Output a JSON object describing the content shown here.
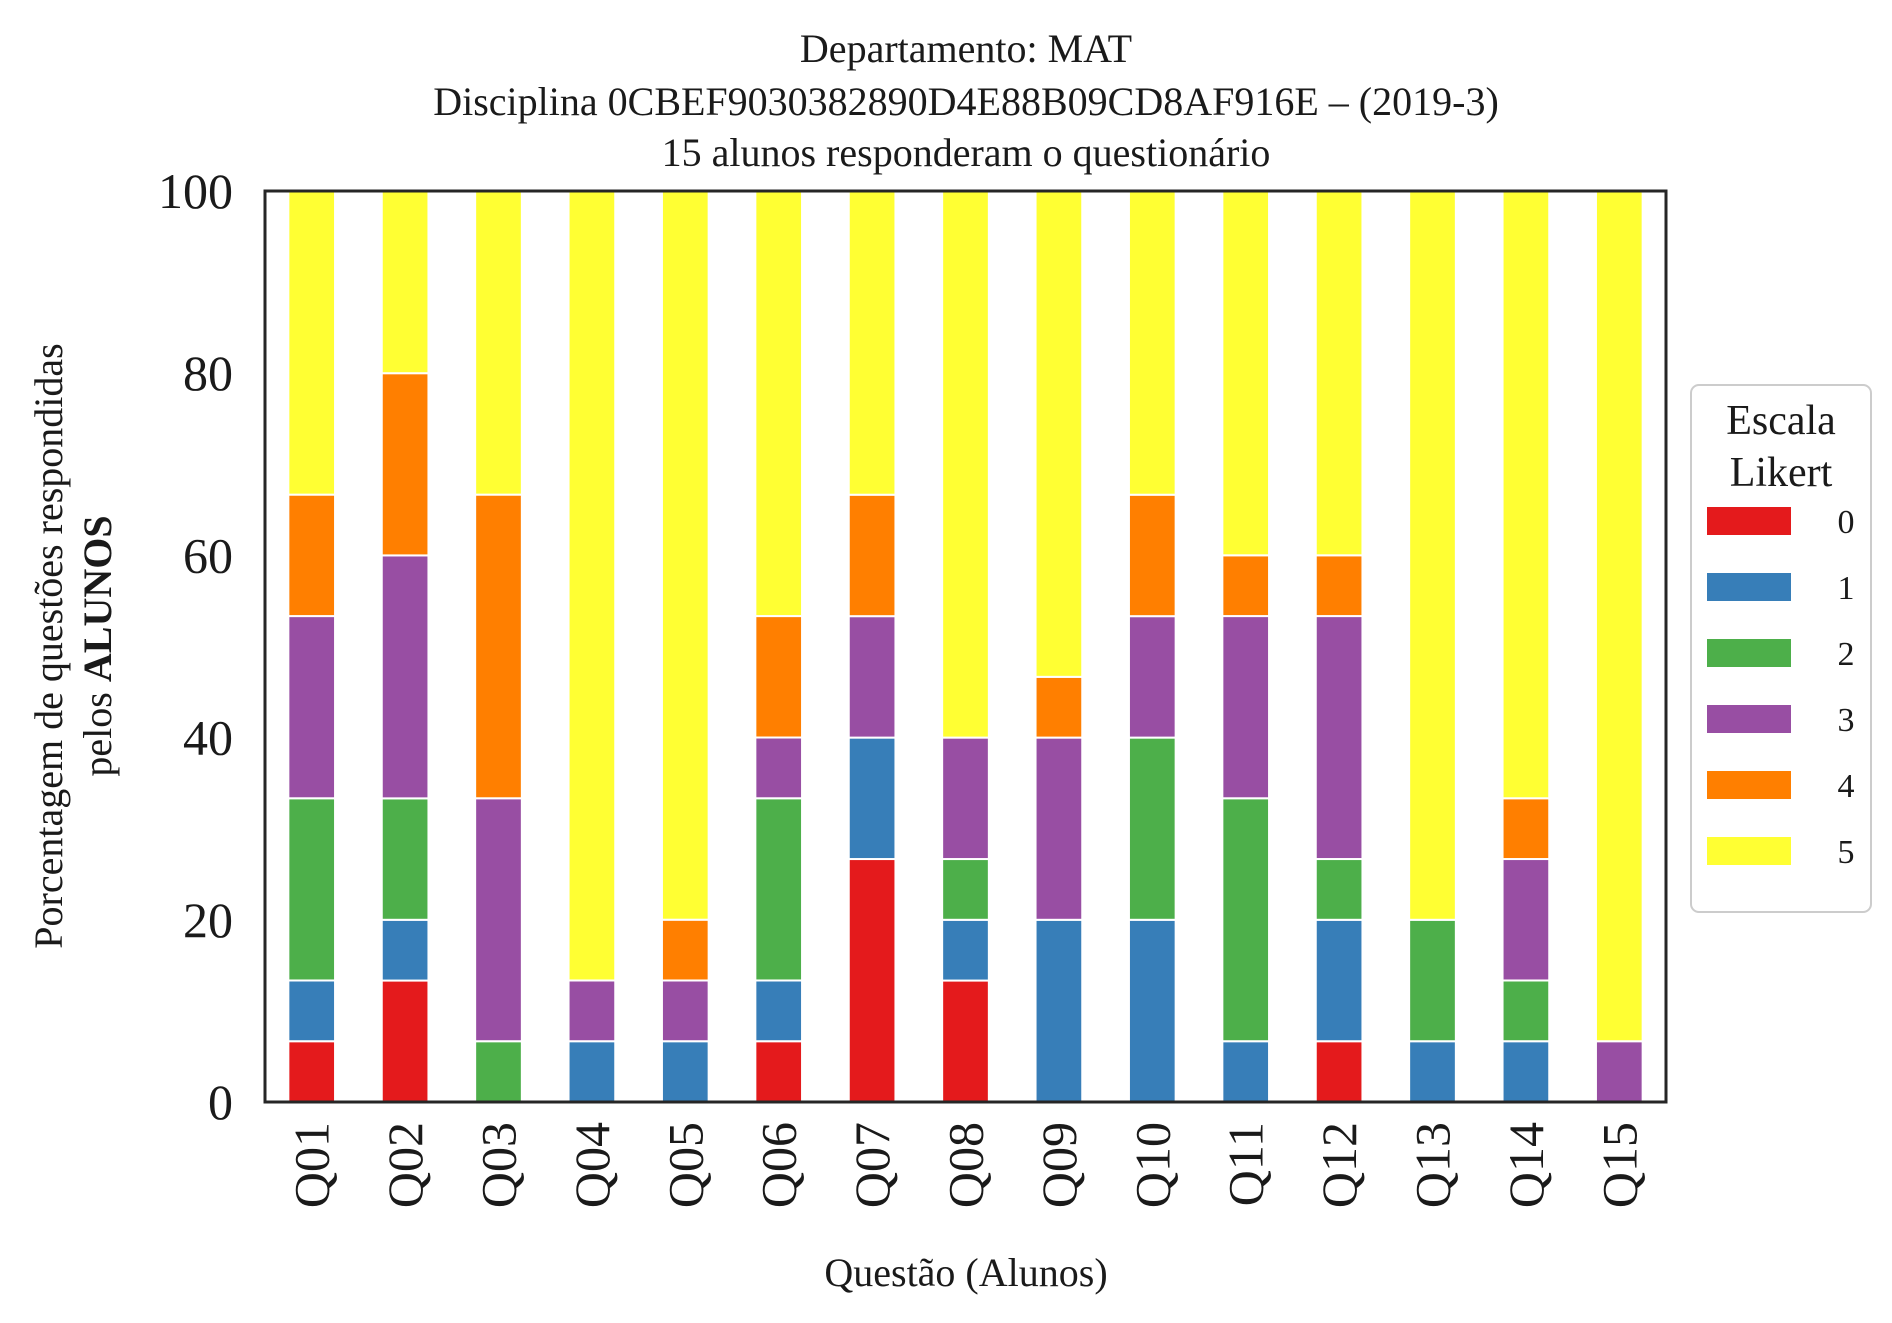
{
  "chart_data": {
    "type": "bar",
    "stacked": true,
    "title": [
      "Departamento: MAT",
      "Disciplina 0CBEF9030382890D4E88B09CD8AF916E – (2019-3)",
      "15 alunos responderam o questionário"
    ],
    "xlabel": "Questão (Alunos)",
    "ylabel": {
      "line1": "Porcentagem de questões respondidas",
      "line2_prefix": "pelos ",
      "line2_bold": "ALUNOS"
    },
    "ylim": [
      0,
      100
    ],
    "yticks": [
      "0",
      "20",
      "40",
      "60",
      "80",
      "100"
    ],
    "grid": false,
    "categories": [
      "Q01",
      "Q02",
      "Q03",
      "Q04",
      "Q05",
      "Q06",
      "Q07",
      "Q08",
      "Q09",
      "Q10",
      "Q11",
      "Q12",
      "Q13",
      "Q14",
      "Q15"
    ],
    "legend": {
      "title": [
        "Escala",
        "Likert"
      ],
      "placement": "outside-right"
    },
    "series": [
      {
        "name": "0",
        "color": "#e41a1c",
        "values": [
          6.67,
          13.33,
          0,
          0,
          0,
          6.67,
          26.67,
          13.33,
          0,
          0,
          0,
          6.67,
          0,
          0,
          0
        ]
      },
      {
        "name": "1",
        "color": "#377eb8",
        "values": [
          6.67,
          6.67,
          0,
          6.67,
          6.67,
          6.67,
          13.33,
          6.67,
          20,
          20,
          6.67,
          13.33,
          6.67,
          6.67,
          0
        ]
      },
      {
        "name": "2",
        "color": "#4daf4a",
        "values": [
          20,
          13.33,
          6.67,
          0,
          0,
          20,
          0,
          6.67,
          0,
          20,
          26.67,
          6.67,
          13.33,
          6.67,
          0
        ]
      },
      {
        "name": "3",
        "color": "#984ea3",
        "values": [
          20,
          26.67,
          26.67,
          6.67,
          6.67,
          6.67,
          13.33,
          13.33,
          20,
          13.33,
          20,
          26.67,
          0,
          13.33,
          6.67
        ]
      },
      {
        "name": "4",
        "color": "#ff7f00",
        "values": [
          13.33,
          20,
          33.33,
          0,
          6.67,
          13.33,
          13.33,
          0,
          6.67,
          13.33,
          6.67,
          6.67,
          0,
          6.67,
          0
        ]
      },
      {
        "name": "5",
        "color": "#ffff33",
        "values": [
          33.33,
          20,
          33.33,
          86.67,
          80,
          46.67,
          33.33,
          60,
          53.33,
          33.33,
          40,
          40,
          80,
          66.67,
          93.33
        ]
      }
    ]
  }
}
